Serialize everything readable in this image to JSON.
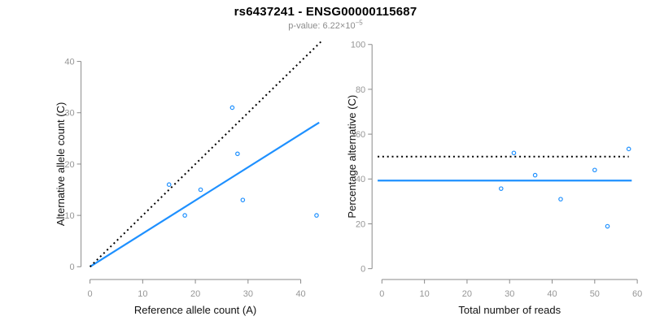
{
  "header": {
    "title": "rs6437241 - ENSG00000115687",
    "pvalue_text": "p-value: 6.22×10",
    "pvalue_exponent": "−5"
  },
  "colors": {
    "accent_blue": "#1E90FF",
    "reference_black": "#000000",
    "axis_line_gray": "#8a8a8a",
    "tick_label_gray": "#969696",
    "axis_title_color": "#111111"
  },
  "chart_data": [
    {
      "type": "scatter",
      "name": "allele-counts",
      "xlabel": "Reference allele count (A)",
      "ylabel": "Alternative allele count (C)",
      "x_ticks": [
        0,
        10,
        20,
        30,
        40
      ],
      "y_ticks": [
        0,
        10,
        20,
        30,
        40
      ],
      "xlim": [
        -1.7,
        44.7
      ],
      "ylim": [
        -1.7,
        44.7
      ],
      "grid": false,
      "points": [
        [
          15,
          16
        ],
        [
          18,
          10
        ],
        [
          21,
          15
        ],
        [
          27,
          31
        ],
        [
          28,
          22
        ],
        [
          29,
          13
        ],
        [
          43,
          10
        ]
      ],
      "lines": [
        {
          "name": "regression",
          "style": "solid",
          "color_key": "accent_blue",
          "x1": 0,
          "y1": 0,
          "x2": 43.5,
          "y2": 28.1
        },
        {
          "name": "identity",
          "style": "dotted",
          "color_key": "reference_black",
          "x1": 0,
          "y1": 0,
          "x2": 44,
          "y2": 44
        }
      ]
    },
    {
      "type": "scatter",
      "name": "percentage-alternative",
      "xlabel": "Total number of reads",
      "ylabel": "Percentage alternative (C)",
      "x_ticks": [
        0,
        10,
        20,
        30,
        40,
        50,
        60
      ],
      "y_ticks": [
        0,
        20,
        40,
        60,
        80,
        100
      ],
      "xlim": [
        -2.32,
        60.32
      ],
      "ylim": [
        -4,
        104
      ],
      "grid": false,
      "points": [
        [
          28,
          35.7
        ],
        [
          31,
          51.6
        ],
        [
          36,
          41.7
        ],
        [
          42,
          31.0
        ],
        [
          50,
          44.0
        ],
        [
          53,
          18.9
        ],
        [
          58,
          53.4
        ]
      ],
      "lines": [
        {
          "name": "mean-percentage",
          "style": "solid",
          "color_key": "accent_blue",
          "x1": -1,
          "y1": 39.3,
          "x2": 58.7,
          "y2": 39.3
        },
        {
          "name": "expected-50pct",
          "style": "dotted",
          "color_key": "reference_black",
          "x1": -1,
          "y1": 50,
          "x2": 58,
          "y2": 50
        }
      ]
    }
  ]
}
